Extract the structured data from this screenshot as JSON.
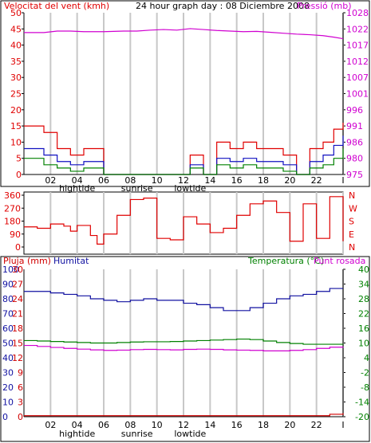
{
  "colors": {
    "wind": "#e00000",
    "wind_avg": "#1010c0",
    "wind_min": "#008000",
    "pressure": "#d000d0",
    "rain": "#d00000",
    "humidity": "#1010a0",
    "temperature": "#008000",
    "dewpoint": "#d000d0",
    "grid": "#c8c8c8",
    "frame": "#000000"
  },
  "chart_data": [
    {
      "type": "line",
      "panel": "wind-pressure",
      "title": "24 hour graph day : 08 Diciembre 2008",
      "left_label": "Velocitat del vent (kmh)",
      "right_label": "Pressió (mb)",
      "y_left_ticks": [
        "50",
        "45",
        "40",
        "35",
        "30",
        "25",
        "20",
        "15",
        "10",
        "5",
        "0"
      ],
      "y_right_ticks": [
        "1028",
        "1022",
        "1017",
        "1012",
        "1007",
        "1001",
        "996",
        "991",
        "986",
        "980",
        "975"
      ],
      "ylim_left": [
        0,
        50
      ],
      "ylim_right": [
        975,
        1028
      ],
      "x_ticks": [
        "02",
        "04",
        "06",
        "08",
        "10",
        "12",
        "14",
        "16",
        "18",
        "20",
        "22",
        "I"
      ],
      "x_annotations": [
        "hightide",
        "sunrise",
        "lowtide"
      ],
      "x_hours": [
        0,
        1.5,
        2.5,
        3.5,
        4.5,
        6,
        7.5,
        8.5,
        9.5,
        10.5,
        11.5,
        12.5,
        13.5,
        14.5,
        15.5,
        16.5,
        17.5,
        18.5,
        19.5,
        20.5,
        21.5,
        22.5,
        23.3,
        24
      ],
      "series": [
        {
          "key": "gust",
          "values": [
            15,
            13,
            8,
            6,
            8,
            0,
            0,
            0,
            0,
            0,
            0,
            6,
            0,
            10,
            8,
            10,
            8,
            8,
            6,
            0,
            8,
            10,
            14,
            16
          ]
        },
        {
          "key": "average",
          "values": [
            8,
            6,
            4,
            3,
            4,
            0,
            0,
            0,
            0,
            0,
            0,
            3,
            0,
            5,
            4,
            5,
            4,
            4,
            3,
            0,
            4,
            6,
            9,
            12
          ]
        },
        {
          "key": "minimum",
          "values": [
            5,
            3,
            2,
            1,
            2,
            0,
            0,
            0,
            0,
            0,
            0,
            2,
            0,
            3,
            2,
            3,
            2,
            2,
            1,
            0,
            2,
            3,
            5,
            8
          ]
        },
        {
          "key": "pressure",
          "values": [
            1021.5,
            1021.5,
            1022,
            1022,
            1021.8,
            1021.8,
            1022,
            1022,
            1022.3,
            1022.5,
            1022.3,
            1022.8,
            1022.5,
            1022.2,
            1022,
            1021.8,
            1021.9,
            1021.6,
            1021.3,
            1021,
            1020.8,
            1020.5,
            1020,
            1019.5
          ]
        }
      ]
    },
    {
      "type": "line",
      "panel": "wind-direction",
      "y_left_ticks": [
        "360",
        "270",
        "180",
        "90",
        "0"
      ],
      "y_right_ticks": [
        "N",
        "W",
        "S",
        "E",
        "N"
      ],
      "ylim": [
        0,
        360
      ],
      "x_hours": [
        0,
        1,
        2,
        3,
        3.5,
        4,
        5,
        5.5,
        6,
        7,
        8,
        9,
        10,
        11,
        12,
        13,
        14,
        15,
        16,
        17,
        18,
        19,
        20,
        21,
        22,
        23,
        24
      ],
      "values": [
        140,
        130,
        160,
        145,
        110,
        150,
        80,
        20,
        90,
        220,
        330,
        340,
        60,
        50,
        210,
        160,
        100,
        130,
        220,
        300,
        320,
        240,
        40,
        300,
        60,
        350,
        40
      ]
    },
    {
      "type": "line",
      "panel": "rain-humidity-temperature",
      "left_label_rain": "Pluja (mm)",
      "left_label_humidity": "Humitat",
      "right_label": "Temperatura (°C)",
      "right_label_2": "Punt rosada",
      "y_left_ticks_humidity": [
        "100",
        "90",
        "80",
        "70",
        "60",
        "50",
        "40",
        "30",
        "20",
        "10",
        "0"
      ],
      "y_left_ticks_rain": [
        "30",
        "27",
        "24",
        "21",
        "18",
        "15",
        "12",
        "9",
        "6",
        "3",
        "0"
      ],
      "y_right_ticks": [
        "40",
        "34",
        "28",
        "22",
        "16",
        "10",
        "4",
        "-2",
        "-8",
        "-14",
        "-20"
      ],
      "ylim_humidity": [
        0,
        100
      ],
      "ylim_rain": [
        0,
        30
      ],
      "ylim_temperature": [
        -20,
        40
      ],
      "x_ticks": [
        "02",
        "04",
        "06",
        "08",
        "10",
        "12",
        "14",
        "16",
        "18",
        "20",
        "22",
        "I"
      ],
      "x_annotations": [
        "hightide",
        "sunrise",
        "lowtide"
      ],
      "x_hours": [
        0,
        1,
        2,
        3,
        4,
        5,
        6,
        7,
        8,
        9,
        10,
        11,
        12,
        13,
        14,
        15,
        16,
        17,
        18,
        19,
        20,
        21,
        22,
        23,
        24
      ],
      "series": [
        {
          "key": "humidity",
          "values": [
            85,
            85,
            84,
            83,
            82,
            80,
            79,
            78,
            79,
            80,
            79,
            79,
            77,
            76,
            74,
            72,
            72,
            74,
            77,
            80,
            82,
            83,
            85,
            87,
            87
          ]
        },
        {
          "key": "temperature",
          "values": [
            11,
            10.8,
            10.6,
            10.4,
            10.2,
            10,
            10,
            10.2,
            10.4,
            10.5,
            10.5,
            10.6,
            10.8,
            11,
            11.2,
            11.4,
            11.6,
            11.4,
            10.8,
            10.2,
            9.8,
            9.5,
            9.5,
            9.5,
            9.4
          ]
        },
        {
          "key": "dewpoint",
          "values": [
            9,
            8.6,
            8.2,
            7.8,
            7.5,
            7.2,
            7,
            7.1,
            7.3,
            7.4,
            7.3,
            7.2,
            7.4,
            7.5,
            7.4,
            7.2,
            7.1,
            7,
            6.8,
            6.8,
            7,
            7.3,
            7.8,
            8.3,
            8.5
          ]
        },
        {
          "key": "rain",
          "values": [
            0.2,
            0.2,
            0.2,
            0.2,
            0.2,
            0.2,
            0.2,
            0.2,
            0.2,
            0.2,
            0.2,
            0.2,
            0.2,
            0.2,
            0.2,
            0.2,
            0.2,
            0.2,
            0.2,
            0.2,
            0.2,
            0.2,
            0.2,
            0.5,
            0.7
          ]
        }
      ]
    }
  ]
}
